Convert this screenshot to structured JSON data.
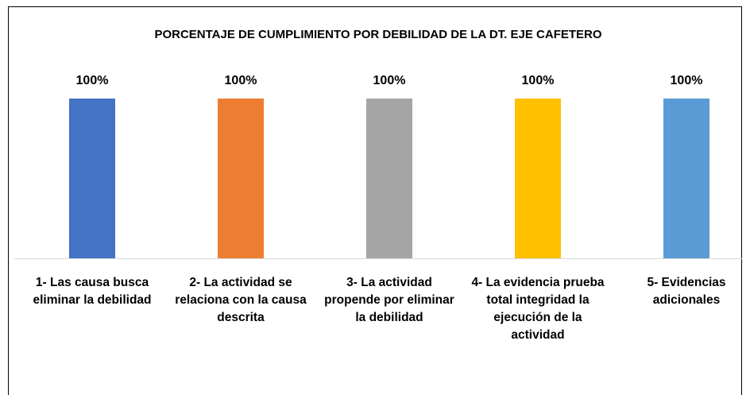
{
  "chart_data": {
    "type": "bar",
    "title": "PORCENTAJE DE CUMPLIMIENTO POR DEBILIDAD DE LA DT. EJE CAFETERO",
    "categories": [
      "1- Las causa busca eliminar la debilidad",
      "2- La actividad se relaciona con la causa descrita",
      "3- La actividad propende por eliminar la debilidad",
      "4- La evidencia prueba total integridad la ejecución de la actividad",
      "5- Evidencias adicionales"
    ],
    "values": [
      100,
      100,
      100,
      100,
      100
    ],
    "value_labels": [
      "100%",
      "100%",
      "100%",
      "100%",
      "100%"
    ],
    "colors": [
      "#4472c4",
      "#ed7d31",
      "#a5a5a5",
      "#ffc000",
      "#5b9bd5"
    ],
    "ylim": [
      0,
      100
    ]
  }
}
